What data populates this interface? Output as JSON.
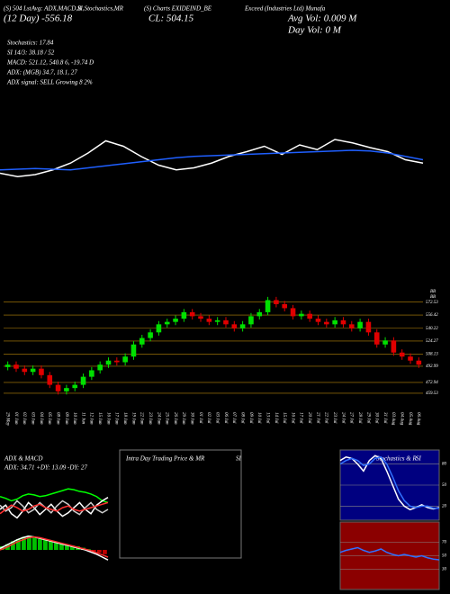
{
  "header": {
    "line1": [
      "(S) 504 LstAvg: ADX,MACD,B",
      "SI,Stochastics,MR",
      "(S) Charts EXIDEIND_BE",
      "Exceed (Industries Ltd) Munafa"
    ],
    "day": "(12 Day) -556.18",
    "close": "CL: 504.15",
    "avg_vol": "Avg Vol: 0.009  M",
    "day_vol": "Day Vol: 0   M",
    "stats": [
      "Stochastics: 17.84",
      "SI 14/3: 38.18 / 52",
      "MACD: 521.12, 540.8     6, -19.74  D",
      "ADX:                (MGB) 34.7, 18.1, 27",
      "ADX  signal: SELL Growing 8 2%"
    ]
  },
  "chart_data": [
    {
      "type": "candlestick",
      "annotations": [
        "BB",
        "BB"
      ],
      "categories": [
        "29 May",
        "01 Jun",
        "02 Jun",
        "03 Jun",
        "04 Jun",
        "05 Jun",
        "08 Jun",
        "09 Jun",
        "10 Jun",
        "11 Jun",
        "12 Jun",
        "15 Jun",
        "16 Jun",
        "17 Jun",
        "18 Jun",
        "19 Jun",
        "22 Jun",
        "23 Jun",
        "24 Jun",
        "25 Jun",
        "26 Jun",
        "29 Jun",
        "30 Jun",
        "01 Jul",
        "02 Jul",
        "03 Jul",
        "06 Jul",
        "07 Jul",
        "08 Jul",
        "09 Jul",
        "10 Jul",
        "13 Jul",
        "14 Jul",
        "15 Jul",
        "16 Jul",
        "17 Jul",
        "20 Jul",
        "21 Jul",
        "22 Jul",
        "23 Jul",
        "24 Jul",
        "27 Jul",
        "28 Jul",
        "29 Jul",
        "30 Jul",
        "31 Jul",
        "03 Aug",
        "04 Aug",
        "05 Aug",
        "06 Aug"
      ],
      "open": [
        492,
        495,
        490,
        486,
        490,
        482,
        470,
        462,
        466,
        470,
        480,
        488,
        495,
        500,
        498,
        505,
        520,
        528,
        535,
        545,
        548,
        552,
        560,
        555,
        552,
        548,
        550,
        545,
        540,
        545,
        555,
        560,
        575,
        570,
        565,
        555,
        558,
        552,
        548,
        545,
        550,
        545,
        540,
        548,
        535,
        520,
        525,
        510,
        505,
        500
      ],
      "close": [
        495,
        490,
        486,
        490,
        482,
        470,
        462,
        466,
        470,
        480,
        488,
        495,
        500,
        498,
        505,
        520,
        528,
        535,
        545,
        548,
        552,
        560,
        555,
        552,
        548,
        550,
        545,
        540,
        545,
        555,
        560,
        575,
        570,
        565,
        555,
        558,
        552,
        548,
        545,
        550,
        545,
        540,
        548,
        535,
        520,
        525,
        510,
        505,
        500,
        495
      ],
      "high": [
        499,
        499,
        494,
        494,
        494,
        486,
        474,
        470,
        474,
        484,
        492,
        499,
        504,
        504,
        509,
        524,
        532,
        539,
        549,
        552,
        556,
        564,
        564,
        559,
        556,
        554,
        554,
        549,
        549,
        559,
        564,
        579,
        579,
        574,
        569,
        562,
        562,
        556,
        552,
        554,
        554,
        549,
        552,
        552,
        539,
        529,
        529,
        514,
        509,
        504
      ],
      "low": [
        488,
        486,
        482,
        482,
        478,
        466,
        458,
        458,
        462,
        466,
        476,
        484,
        491,
        494,
        494,
        501,
        516,
        524,
        531,
        541,
        544,
        548,
        551,
        548,
        544,
        544,
        541,
        536,
        536,
        541,
        551,
        556,
        566,
        561,
        551,
        551,
        548,
        544,
        541,
        541,
        541,
        536,
        536,
        531,
        516,
        516,
        506,
        501,
        496,
        491
      ],
      "up_color": "#00e000",
      "down_color": "#e00000",
      "level_color": "#b8860b",
      "ylim": [
        445,
        590
      ],
      "yticks": [
        572.53,
        556.42,
        540.22,
        524.27,
        508.13,
        492.99,
        472.94,
        459.53
      ]
    },
    {
      "type": "line",
      "ylim": [
        0,
        100
      ],
      "series": [
        {
          "color": "#ffffff",
          "values": [
            30,
            25,
            28,
            35,
            45,
            60,
            78,
            70,
            55,
            42,
            35,
            38,
            45,
            55,
            62,
            70,
            58,
            72,
            65,
            80,
            75,
            68,
            62,
            50,
            45
          ]
        },
        {
          "color": "#1f5fff",
          "values": [
            35,
            36,
            37,
            36,
            35,
            38,
            41,
            44,
            47,
            50,
            53,
            55,
            56,
            57,
            58,
            59,
            60,
            61,
            62,
            63,
            64,
            63,
            60,
            55,
            50
          ]
        }
      ]
    },
    {
      "type": "line",
      "title": "ADX  & MACD",
      "subtitle": "ADX: 34.71 +DY: 13.09 -DY: 27",
      "ylim": [
        0,
        60
      ],
      "series": [
        {
          "color": "#00ff00",
          "values": [
            35,
            33,
            30,
            32,
            36,
            38,
            37,
            35,
            36,
            38,
            40,
            42,
            44,
            43,
            41,
            40,
            38,
            35,
            30,
            28
          ]
        },
        {
          "color": "#ffffff",
          "values": [
            20,
            25,
            15,
            10,
            18,
            28,
            22,
            14,
            20,
            26,
            18,
            12,
            16,
            22,
            28,
            20,
            15,
            25,
            30,
            34
          ]
        },
        {
          "color": "#cccccc",
          "values": [
            25,
            18,
            22,
            30,
            24,
            16,
            20,
            28,
            22,
            16,
            24,
            30,
            26,
            18,
            14,
            22,
            28,
            20,
            16,
            20
          ]
        },
        {
          "color": "#ff3030",
          "values": [
            15,
            20,
            25,
            22,
            18,
            20,
            24,
            26,
            22,
            20,
            18,
            22,
            24,
            20,
            18,
            20,
            22,
            24,
            26,
            28
          ]
        }
      ]
    },
    {
      "type": "bar",
      "ylim": [
        -30,
        30
      ],
      "color": "#00c000",
      "negative_color": "#c00000",
      "values": [
        5,
        8,
        12,
        15,
        18,
        20,
        18,
        15,
        14,
        12,
        10,
        8,
        7,
        6,
        5,
        3,
        1,
        -2,
        -4,
        -6
      ],
      "series": [
        {
          "color": "#ffffff",
          "values": [
            2,
            6,
            10,
            14,
            17,
            19,
            18,
            16,
            14,
            12,
            10,
            8,
            6,
            4,
            2,
            0,
            -3,
            -6,
            -10,
            -14
          ]
        },
        {
          "color": "#ff3030",
          "values": [
            0,
            3,
            7,
            11,
            14,
            17,
            18,
            17,
            15,
            13,
            11,
            9,
            7,
            5,
            3,
            1,
            -1,
            -4,
            -7,
            -10
          ]
        }
      ]
    },
    {
      "type": "panel",
      "title": "Intra Day Trading Price  & MR",
      "subtitle": "SI"
    },
    {
      "type": "line",
      "title": "Stochastics & R",
      "subtitle": "SI",
      "background": "#000080",
      "ylim": [
        0,
        100
      ],
      "yticks": [
        80,
        50,
        20
      ],
      "series": [
        {
          "color": "#ffffff",
          "values": [
            85,
            90,
            88,
            80,
            70,
            85,
            92,
            88,
            70,
            50,
            30,
            20,
            15,
            18,
            22,
            18,
            16,
            18
          ]
        },
        {
          "color": "#3070ff",
          "values": [
            80,
            85,
            88,
            85,
            78,
            80,
            88,
            90,
            80,
            62,
            42,
            28,
            20,
            18,
            20,
            20,
            17,
            17
          ]
        }
      ]
    },
    {
      "type": "line",
      "background": "#8b0000",
      "ylim": [
        0,
        100
      ],
      "yticks": [
        70,
        50,
        30
      ],
      "series": [
        {
          "color": "#3070ff",
          "values": [
            55,
            58,
            60,
            62,
            58,
            55,
            57,
            60,
            55,
            52,
            50,
            52,
            50,
            48,
            50,
            47,
            45,
            44
          ]
        }
      ]
    }
  ]
}
